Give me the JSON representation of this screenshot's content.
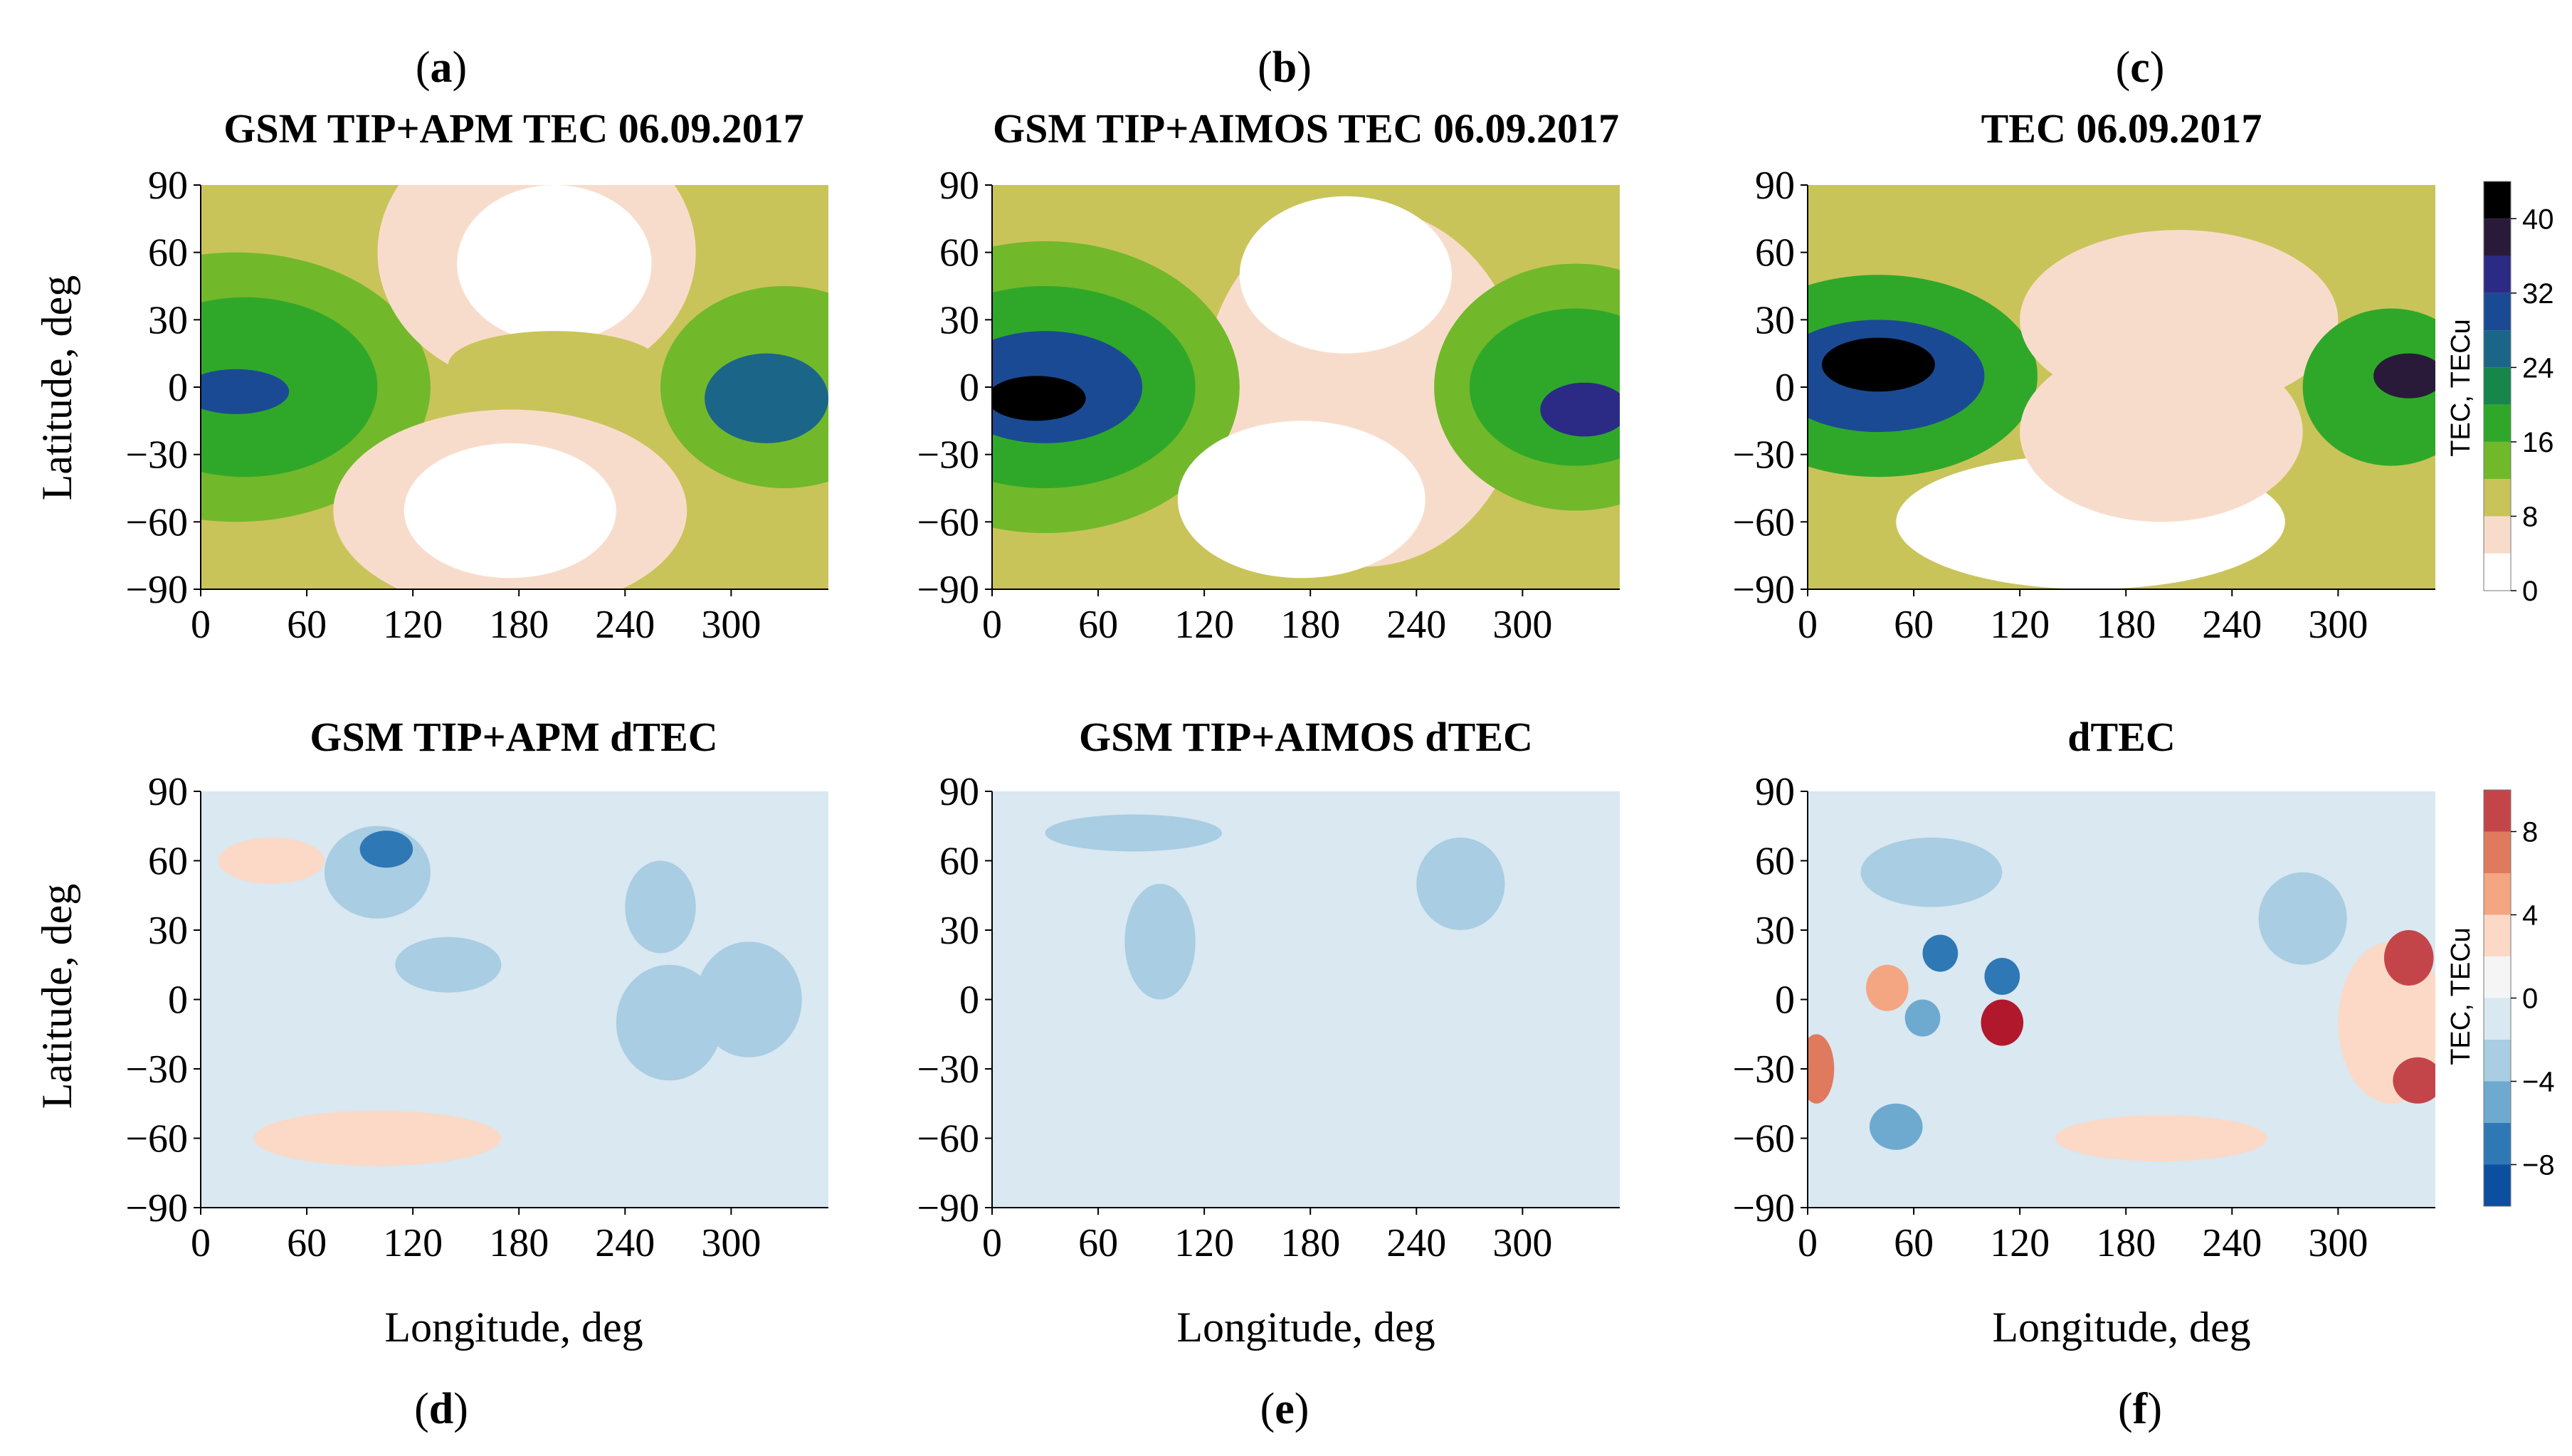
{
  "chart_data": [
    {
      "type": "heatmap",
      "panel_letter": "a",
      "title": "GSM TIP+APM TEC 06.09.2017",
      "xlabel": "",
      "ylabel": "Latitude, deg",
      "x_ticks": [
        "0",
        "60",
        "120",
        "180",
        "240",
        "300"
      ],
      "y_ticks": [
        "90",
        "60",
        "30",
        "0",
        "−30",
        "−60",
        "−90"
      ],
      "xlim": [
        0,
        355
      ],
      "ylim": [
        -90,
        90
      ],
      "colormap": "tec",
      "regions": [
        {
          "lon": 20,
          "lat": -2,
          "rlon": 30,
          "rlat": 10,
          "value": 30
        },
        {
          "lon": 25,
          "lat": 0,
          "rlon": 75,
          "rlat": 40,
          "value": 18
        },
        {
          "lon": 20,
          "lat": 0,
          "rlon": 110,
          "rlat": 60,
          "value": 12
        },
        {
          "lon": 320,
          "lat": -5,
          "rlon": 35,
          "rlat": 20,
          "value": 26
        },
        {
          "lon": 330,
          "lat": 0,
          "rlon": 70,
          "rlat": 45,
          "value": 14
        },
        {
          "lon": 200,
          "lat": 55,
          "rlon": 55,
          "rlat": 35,
          "value": 0
        },
        {
          "lon": 175,
          "lat": -55,
          "rlon": 60,
          "rlat": 30,
          "value": 0
        },
        {
          "lon": 200,
          "lat": 10,
          "rlon": 60,
          "rlat": 15,
          "value": 10
        },
        {
          "lon": 190,
          "lat": 60,
          "rlon": 90,
          "rlat": 60,
          "value": 6
        },
        {
          "lon": 175,
          "lat": -55,
          "rlon": 100,
          "rlat": 45,
          "value": 6
        }
      ]
    },
    {
      "type": "heatmap",
      "panel_letter": "b",
      "title": "GSM TIP+AIMOS TEC 06.09.2017",
      "xlabel": "",
      "ylabel": "",
      "x_ticks": [
        "0",
        "60",
        "120",
        "180",
        "240",
        "300"
      ],
      "y_ticks": [
        "90",
        "60",
        "30",
        "0",
        "−30",
        "−60",
        "−90"
      ],
      "xlim": [
        0,
        355
      ],
      "ylim": [
        -90,
        90
      ],
      "colormap": "tec",
      "regions": [
        {
          "lon": 25,
          "lat": -5,
          "rlon": 28,
          "rlat": 10,
          "value": 40
        },
        {
          "lon": 30,
          "lat": 0,
          "rlon": 55,
          "rlat": 25,
          "value": 30
        },
        {
          "lon": 30,
          "lat": 0,
          "rlon": 85,
          "rlat": 45,
          "value": 18
        },
        {
          "lon": 30,
          "lat": 0,
          "rlon": 110,
          "rlat": 65,
          "value": 12
        },
        {
          "lon": 335,
          "lat": -10,
          "rlon": 25,
          "rlat": 12,
          "value": 32
        },
        {
          "lon": 330,
          "lat": 0,
          "rlon": 60,
          "rlat": 35,
          "value": 18
        },
        {
          "lon": 330,
          "lat": 0,
          "rlon": 80,
          "rlat": 55,
          "value": 12
        },
        {
          "lon": 200,
          "lat": 50,
          "rlon": 60,
          "rlat": 35,
          "value": 0
        },
        {
          "lon": 175,
          "lat": -50,
          "rlon": 70,
          "rlat": 35,
          "value": 0
        },
        {
          "lon": 210,
          "lat": 0,
          "rlon": 90,
          "rlat": 80,
          "value": 6
        }
      ]
    },
    {
      "type": "heatmap",
      "panel_letter": "c",
      "title": "TEC 06.09.2017",
      "xlabel": "",
      "ylabel": "",
      "x_ticks": [
        "0",
        "60",
        "120",
        "180",
        "240",
        "300"
      ],
      "y_ticks": [
        "90",
        "60",
        "30",
        "0",
        "−30",
        "−60",
        "−90"
      ],
      "xlim": [
        0,
        355
      ],
      "ylim": [
        -90,
        90
      ],
      "colormap": "tec",
      "regions": [
        {
          "lon": 40,
          "lat": 10,
          "rlon": 32,
          "rlat": 12,
          "value": 44
        },
        {
          "lon": 40,
          "lat": 5,
          "rlon": 60,
          "rlat": 25,
          "value": 30
        },
        {
          "lon": 40,
          "lat": 5,
          "rlon": 90,
          "rlat": 45,
          "value": 18
        },
        {
          "lon": 340,
          "lat": 5,
          "rlon": 20,
          "rlat": 10,
          "value": 36
        },
        {
          "lon": 330,
          "lat": 0,
          "rlon": 50,
          "rlat": 35,
          "value": 18
        },
        {
          "lon": 210,
          "lat": 30,
          "rlon": 90,
          "rlat": 40,
          "value": 6
        },
        {
          "lon": 160,
          "lat": -60,
          "rlon": 110,
          "rlat": 30,
          "value": 0
        },
        {
          "lon": 200,
          "lat": -20,
          "rlon": 80,
          "rlat": 40,
          "value": 6
        },
        {
          "lon": 100,
          "lat": 0,
          "rlon": 200,
          "rlat": 85,
          "value": 10
        }
      ]
    },
    {
      "type": "heatmap",
      "panel_letter": "d",
      "title": "GSM TIP+APM dTEC",
      "xlabel": "Longitude, deg",
      "ylabel": "Latitude, deg",
      "x_ticks": [
        "0",
        "60",
        "120",
        "180",
        "240",
        "300"
      ],
      "y_ticks": [
        "90",
        "60",
        "30",
        "0",
        "−30",
        "−60",
        "−90"
      ],
      "xlim": [
        0,
        355
      ],
      "ylim": [
        -90,
        90
      ],
      "colormap": "dtec",
      "regions": [
        {
          "lon": 105,
          "lat": 65,
          "rlon": 15,
          "rlat": 8,
          "value": -8
        },
        {
          "lon": 100,
          "lat": 55,
          "rlon": 30,
          "rlat": 20,
          "value": -4
        },
        {
          "lon": 140,
          "lat": 15,
          "rlon": 30,
          "rlat": 12,
          "value": -4
        },
        {
          "lon": 265,
          "lat": -10,
          "rlon": 30,
          "rlat": 25,
          "value": -3
        },
        {
          "lon": 310,
          "lat": 0,
          "rlon": 30,
          "rlat": 25,
          "value": -3
        },
        {
          "lon": 260,
          "lat": 40,
          "rlon": 20,
          "rlat": 20,
          "value": -3
        },
        {
          "lon": 100,
          "lat": -60,
          "rlon": 70,
          "rlat": 12,
          "value": 2
        },
        {
          "lon": 40,
          "lat": 60,
          "rlon": 30,
          "rlat": 10,
          "value": 2
        },
        {
          "lon": 175,
          "lat": 0,
          "rlon": 200,
          "rlat": 80,
          "value": -1
        }
      ]
    },
    {
      "type": "heatmap",
      "panel_letter": "e",
      "title": "GSM TIP+AIMOS dTEC",
      "xlabel": "Longitude, deg",
      "ylabel": "",
      "x_ticks": [
        "0",
        "60",
        "120",
        "180",
        "240",
        "300"
      ],
      "y_ticks": [
        "90",
        "60",
        "30",
        "0",
        "−30",
        "−60",
        "−90"
      ],
      "xlim": [
        0,
        355
      ],
      "ylim": [
        -90,
        90
      ],
      "colormap": "dtec",
      "regions": [
        {
          "lon": 80,
          "lat": 72,
          "rlon": 50,
          "rlat": 8,
          "value": -4
        },
        {
          "lon": 95,
          "lat": 25,
          "rlon": 20,
          "rlat": 25,
          "value": -4
        },
        {
          "lon": 265,
          "lat": 50,
          "rlon": 25,
          "rlat": 20,
          "value": -3
        },
        {
          "lon": 175,
          "lat": 0,
          "rlon": 220,
          "rlat": 80,
          "value": -1
        }
      ]
    },
    {
      "type": "heatmap",
      "panel_letter": "f",
      "title": "dTEC",
      "xlabel": "Longitude, deg",
      "ylabel": "",
      "x_ticks": [
        "0",
        "60",
        "120",
        "180",
        "240",
        "300"
      ],
      "y_ticks": [
        "90",
        "60",
        "30",
        "0",
        "−30",
        "−60",
        "−90"
      ],
      "xlim": [
        0,
        355
      ],
      "ylim": [
        -90,
        90
      ],
      "colormap": "dtec",
      "regions": [
        {
          "lon": 110,
          "lat": -10,
          "rlon": 12,
          "rlat": 10,
          "value": 10
        },
        {
          "lon": 340,
          "lat": 18,
          "rlon": 14,
          "rlat": 12,
          "value": 9
        },
        {
          "lon": 345,
          "lat": -35,
          "rlon": 14,
          "rlat": 10,
          "value": 9
        },
        {
          "lon": 5,
          "lat": -30,
          "rlon": 10,
          "rlat": 15,
          "value": 6
        },
        {
          "lon": 45,
          "lat": 5,
          "rlon": 12,
          "rlat": 10,
          "value": 5
        },
        {
          "lon": 75,
          "lat": 20,
          "rlon": 10,
          "rlat": 8,
          "value": -8
        },
        {
          "lon": 110,
          "lat": 10,
          "rlon": 10,
          "rlat": 8,
          "value": -8
        },
        {
          "lon": 65,
          "lat": -8,
          "rlon": 10,
          "rlat": 8,
          "value": -6
        },
        {
          "lon": 50,
          "lat": -55,
          "rlon": 15,
          "rlat": 10,
          "value": -5
        },
        {
          "lon": 280,
          "lat": 35,
          "rlon": 25,
          "rlat": 20,
          "value": -4
        },
        {
          "lon": 70,
          "lat": 55,
          "rlon": 40,
          "rlat": 15,
          "value": -3
        },
        {
          "lon": 330,
          "lat": -10,
          "rlon": 30,
          "rlat": 35,
          "value": 3
        },
        {
          "lon": 200,
          "lat": -60,
          "rlon": 60,
          "rlat": 10,
          "value": 2
        },
        {
          "lon": 175,
          "lat": 0,
          "rlon": 220,
          "rlat": 85,
          "value": -1
        }
      ]
    }
  ],
  "colorbars": [
    {
      "label": "TEC, TECu",
      "ticks": [
        "40",
        "32",
        "24",
        "16",
        "8",
        "0"
      ],
      "values": [
        40,
        32,
        24,
        16,
        8,
        0
      ],
      "levels": [
        0,
        4,
        8,
        12,
        16,
        20,
        24,
        28,
        32,
        36,
        40,
        44
      ],
      "colors": [
        "#ffffff",
        "#f8dccb",
        "#c9c45a",
        "#72b82b",
        "#2fa82a",
        "#16864a",
        "#1b6688",
        "#1b4a94",
        "#2b2b86",
        "#2a1a3a",
        "#000000"
      ]
    },
    {
      "label": "TEC, TECu",
      "ticks": [
        "8",
        "4",
        "0",
        "−4",
        "−8"
      ],
      "values": [
        8,
        4,
        0,
        -4,
        -8
      ],
      "levels": [
        -10,
        -8,
        -6,
        -4,
        -2,
        0,
        2,
        4,
        6,
        8,
        10
      ],
      "colors": [
        "#0c4ea0",
        "#2f78b6",
        "#6ea9d0",
        "#a9cde2",
        "#d9e8f1",
        "#f5f5f5",
        "#fbd9c6",
        "#f4a582",
        "#e07a5f",
        "#c44549",
        "#b2182b"
      ]
    }
  ]
}
